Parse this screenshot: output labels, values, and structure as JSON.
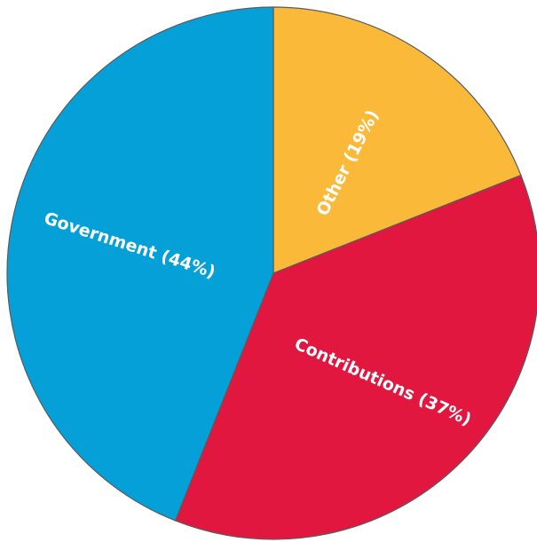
{
  "chart_data": {
    "type": "pie",
    "title": "",
    "start_angle_deg": 0,
    "direction": "clockwise",
    "slices": [
      {
        "name": "Other",
        "label": "Other (19%)",
        "value": 19,
        "color": "#FBB93A"
      },
      {
        "name": "Contributions",
        "label": "Contributions (37%)",
        "value": 37,
        "color": "#E2173F"
      },
      {
        "name": "Government",
        "label": "Government (44%)",
        "value": 44,
        "color": "#04A0D7"
      }
    ]
  }
}
